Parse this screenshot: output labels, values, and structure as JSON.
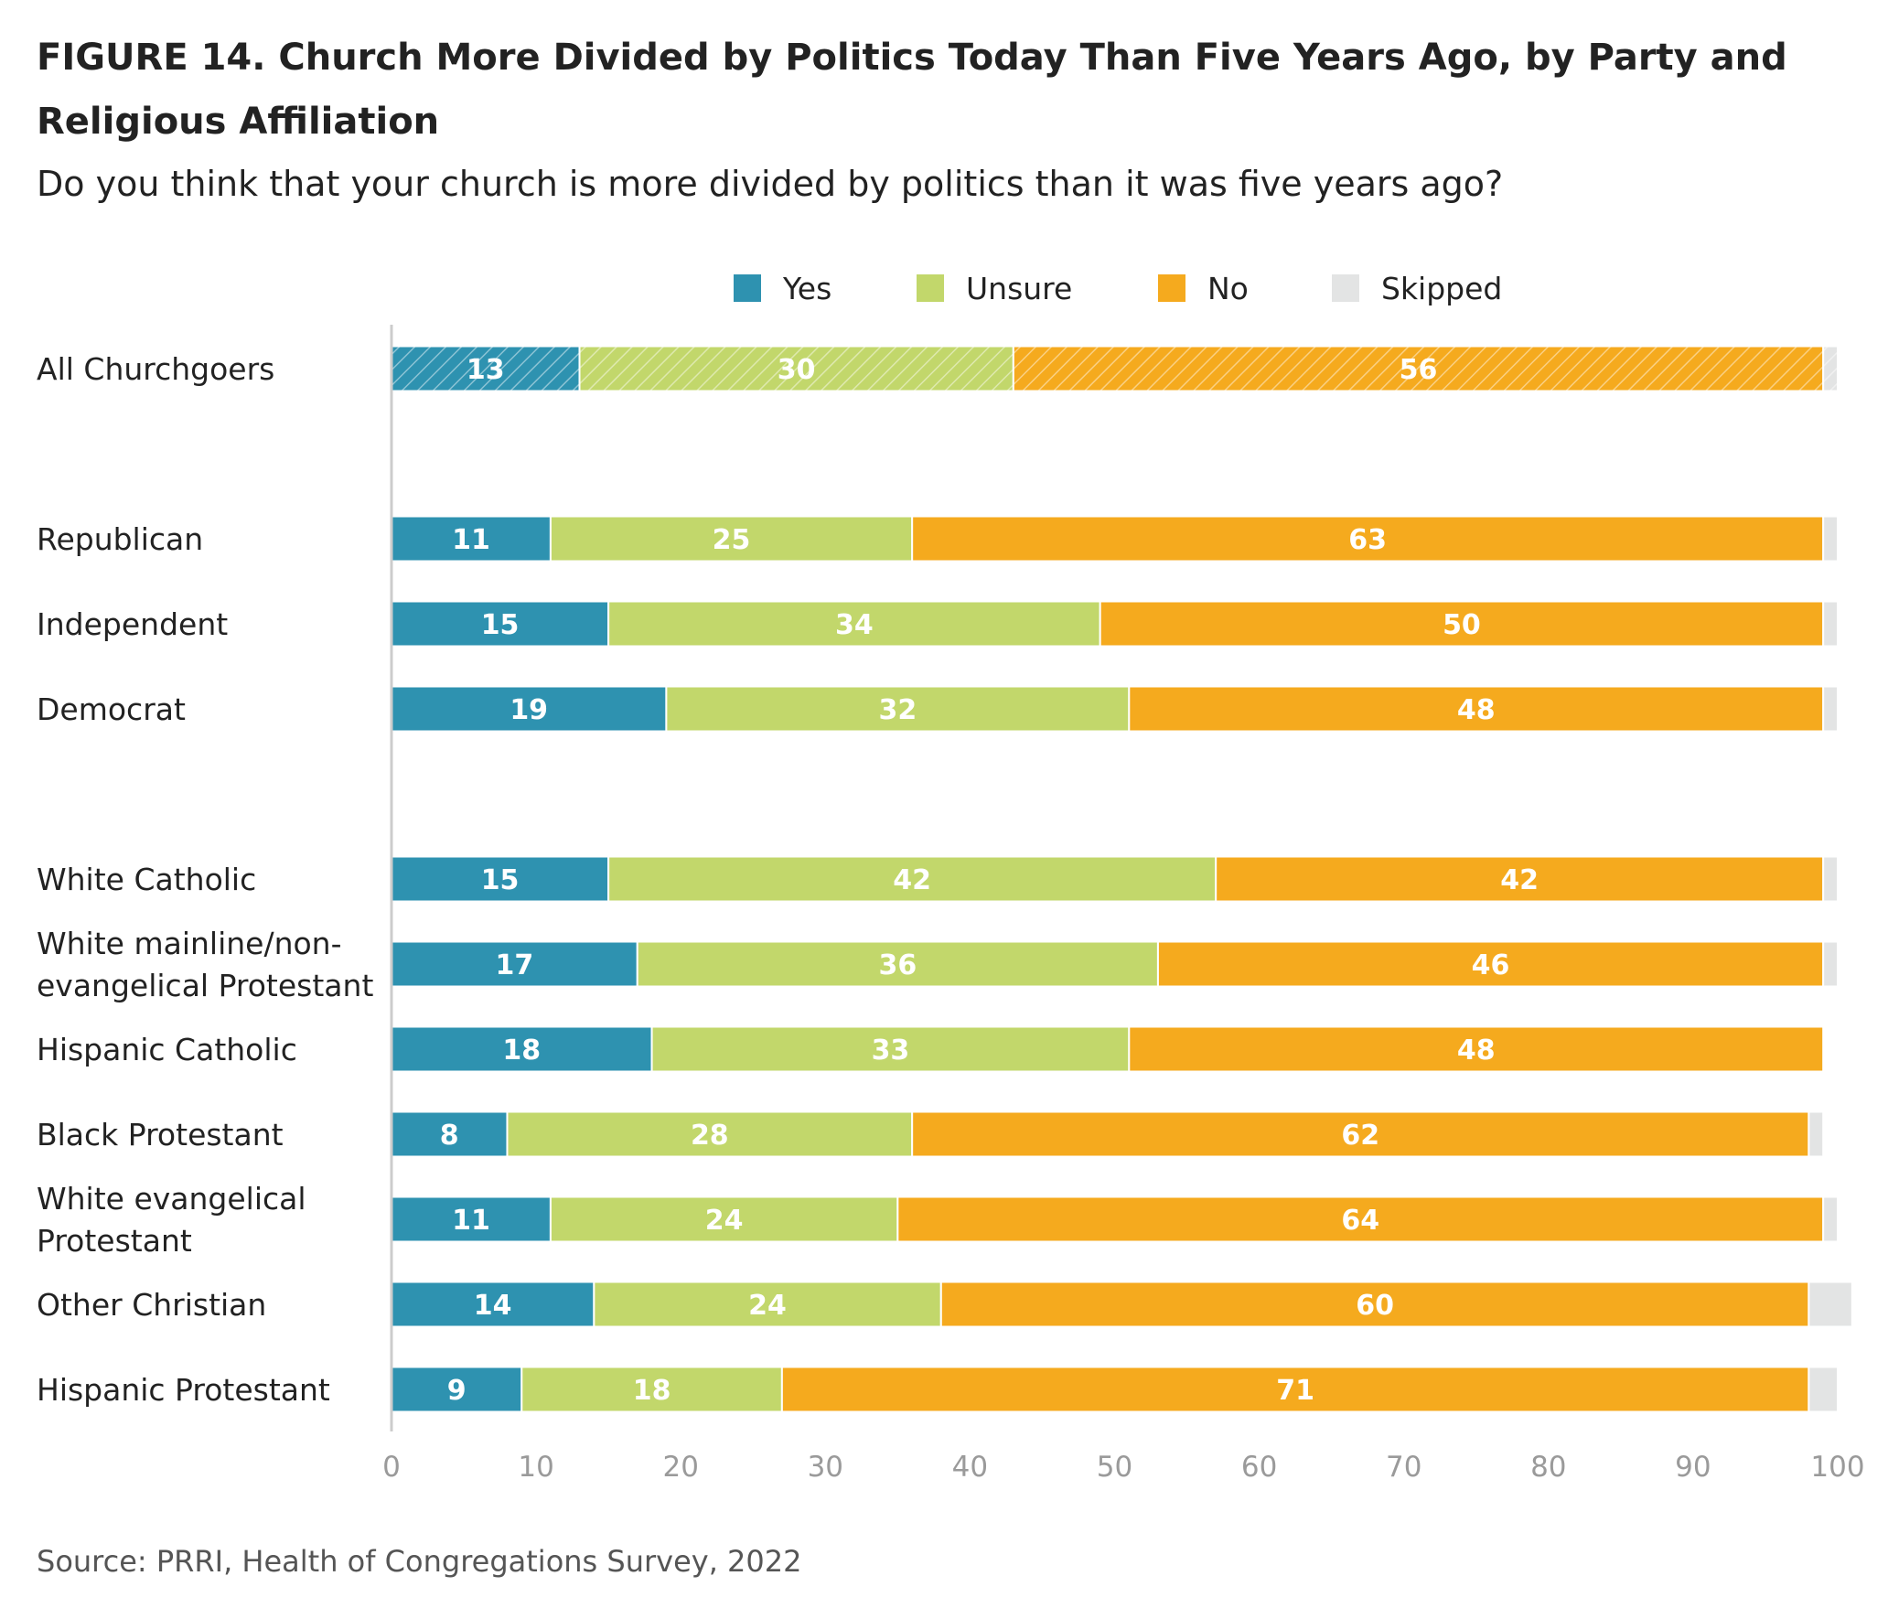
{
  "figure": {
    "title": "FIGURE 14.  Church More Divided by Politics Today Than Five Years Ago, by Party and Religious Affiliation",
    "subtitle": "Do you think that your church is more divided by politics than it was five years ago?",
    "source": "Source: PRRI, Health of Congregations Survey, 2022"
  },
  "colors": {
    "yes": "#2e92b0",
    "unsure": "#c2d76b",
    "no": "#f5aa1e",
    "skipped": "#e3e4e4",
    "axis": "#cccccc",
    "tick_text": "#9a9a9a",
    "label_text": "#222222"
  },
  "chart_data": {
    "type": "bar",
    "orientation": "horizontal",
    "stacked": true,
    "xlim": [
      0,
      100
    ],
    "x_ticks": [
      0,
      10,
      20,
      30,
      40,
      50,
      60,
      70,
      80,
      90,
      100
    ],
    "legend_position": "top",
    "grid": false,
    "categories": [
      "All Churchgoers",
      "Republican",
      "Independent",
      "Democrat",
      "White Catholic",
      "White mainline/non-evangelical Protestant",
      "Hispanic Catholic",
      "Black Protestant",
      "White evangelical Protestant",
      "Other Christian",
      "Hispanic Protestant"
    ],
    "category_label_lines": [
      [
        "All Churchgoers"
      ],
      [
        "Republican"
      ],
      [
        "Independent"
      ],
      [
        "Democrat"
      ],
      [
        "White Catholic"
      ],
      [
        "White mainline/non-",
        "evangelical Protestant"
      ],
      [
        "Hispanic Catholic"
      ],
      [
        "Black Protestant"
      ],
      [
        "White evangelical",
        "Protestant"
      ],
      [
        "Other Christian"
      ],
      [
        "Hispanic Protestant"
      ]
    ],
    "groups": [
      [
        0
      ],
      [
        1,
        2,
        3
      ],
      [
        4,
        5,
        6,
        7,
        8,
        9,
        10
      ]
    ],
    "hatched_categories": [
      0
    ],
    "series": [
      {
        "name": "Yes",
        "color_key": "yes",
        "values": [
          13,
          11,
          15,
          19,
          15,
          17,
          18,
          8,
          11,
          14,
          9
        ]
      },
      {
        "name": "Unsure",
        "color_key": "unsure",
        "values": [
          30,
          25,
          34,
          32,
          42,
          36,
          33,
          28,
          24,
          24,
          18
        ]
      },
      {
        "name": "No",
        "color_key": "no",
        "values": [
          56,
          63,
          50,
          48,
          42,
          46,
          48,
          62,
          64,
          60,
          71
        ]
      },
      {
        "name": "Skipped",
        "color_key": "skipped",
        "values": [
          1,
          1,
          1,
          1,
          1,
          1,
          0,
          1,
          1,
          3,
          2
        ]
      }
    ],
    "labeled_series": [
      "Yes",
      "Unsure",
      "No"
    ]
  }
}
